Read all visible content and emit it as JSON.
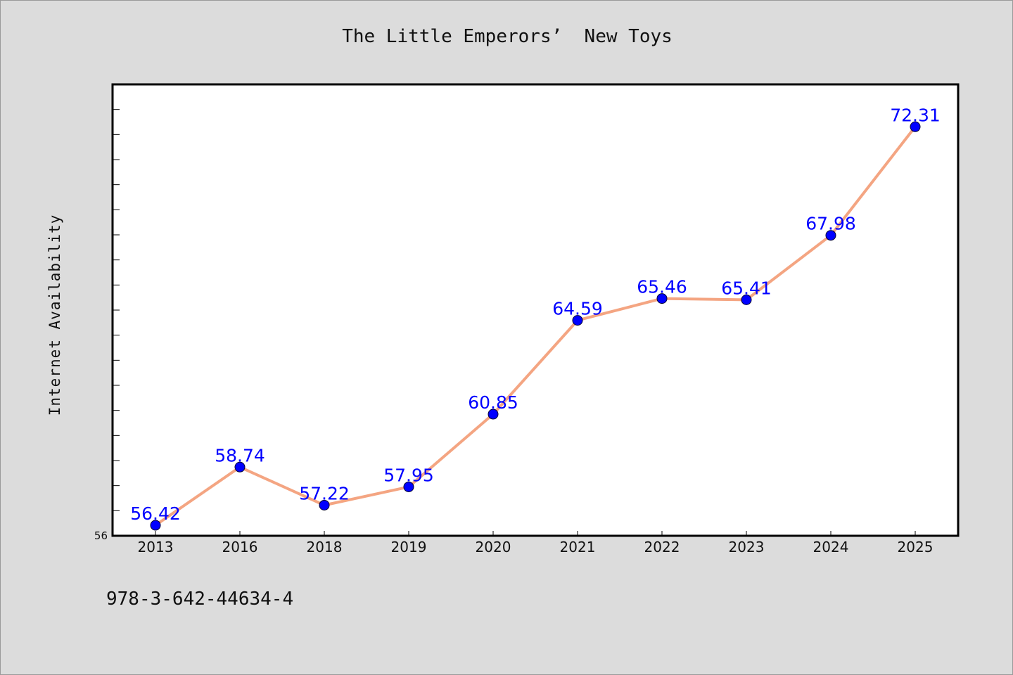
{
  "chart_data": {
    "type": "line",
    "title": "The Little Emperors’  New Toys",
    "xlabel": "",
    "ylabel": "Internet Availability",
    "categories": [
      "2013",
      "2016",
      "2018",
      "2019",
      "2020",
      "2021",
      "2022",
      "2023",
      "2024",
      "2025"
    ],
    "series": [
      {
        "values": [
          56.42,
          58.74,
          57.22,
          57.95,
          60.85,
          64.59,
          65.46,
          65.41,
          67.98,
          72.31
        ],
        "line_color": "#f4a582",
        "marker_color": "#0000ff"
      }
    ],
    "ylim": [
      56,
      74
    ],
    "y_tick_labels_shown": [
      "56"
    ],
    "grid": false,
    "legend": "none",
    "data_label_color": "#0000ff"
  },
  "footer": {
    "isbn": "978-3-642-44634-4"
  },
  "colors": {
    "background": "#dcdcdc",
    "plot_background": "#ffffff",
    "axes_border": "#000000"
  }
}
